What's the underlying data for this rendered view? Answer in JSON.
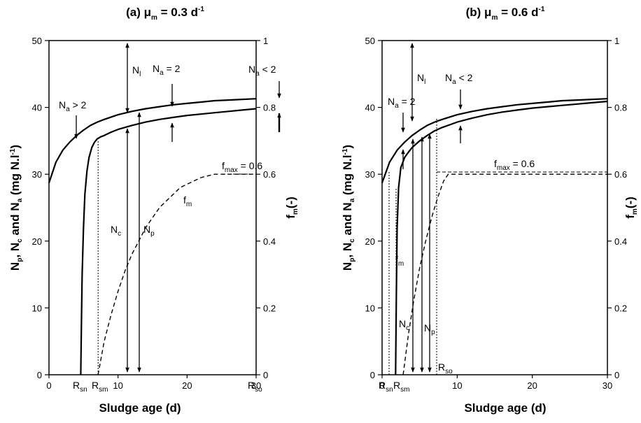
{
  "chart_data": [
    {
      "type": "line",
      "title": {
        "main": "(a) μ",
        "sub": "m",
        "rest": " = 0.3 d",
        "sup": "-1"
      },
      "xlabel": "Sludge age (d)",
      "ylabel": {
        "p1": "N",
        "s1": "p",
        "p2": ", N",
        "s2": "c",
        "p3": " and N",
        "s3": "a",
        "p4": " (mg N.l",
        "sup": "-1",
        "p5": ")"
      },
      "y2label": {
        "p1": "f",
        "s1": "m",
        "p2": "(-)"
      },
      "xlim": [
        0,
        30
      ],
      "ylim": [
        0,
        50
      ],
      "y2lim": [
        0,
        1
      ],
      "xticks": [
        "0",
        "10",
        "20",
        "30"
      ],
      "yticks": [
        "0",
        "10",
        "20",
        "30",
        "40",
        "50"
      ],
      "y2ticks": [
        "0",
        "0.2",
        "0.4",
        "0.6",
        "0.8",
        "1"
      ],
      "series": [
        {
          "key": "Np",
          "style": "solid",
          "x": [
            0,
            1,
            2,
            3,
            4,
            5,
            6,
            7,
            8,
            10,
            12,
            14,
            16,
            18,
            20,
            22,
            24,
            26,
            28,
            30
          ],
          "y": [
            28.7,
            31.8,
            33.6,
            34.8,
            35.8,
            36.6,
            37.3,
            37.8,
            38.2,
            38.9,
            39.4,
            39.8,
            40.1,
            40.4,
            40.6,
            40.8,
            41.0,
            41.1,
            41.2,
            41.3
          ]
        },
        {
          "key": "Nc",
          "style": "solid",
          "x": [
            4.6,
            4.7,
            4.8,
            5.0,
            5.2,
            5.5,
            5.8,
            6.2,
            6.6,
            7.0,
            7.5,
            8.0,
            9,
            10,
            12,
            14,
            16,
            18,
            20,
            22,
            24,
            26,
            28,
            30
          ],
          "y": [
            0,
            8,
            15,
            22,
            27,
            30.5,
            32.5,
            34.0,
            34.8,
            35.3,
            35.6,
            35.8,
            36.3,
            36.7,
            37.3,
            37.8,
            38.2,
            38.5,
            38.8,
            39.0,
            39.2,
            39.4,
            39.6,
            39.8
          ]
        },
        {
          "key": "fm",
          "style": "dashed",
          "axis": "y2",
          "x": [
            7.1,
            8,
            9,
            10,
            11,
            12,
            13,
            14,
            15,
            16,
            17,
            18,
            19,
            20,
            21,
            22,
            23,
            24,
            25,
            30
          ],
          "y": [
            0,
            0.1,
            0.18,
            0.25,
            0.31,
            0.36,
            0.4,
            0.44,
            0.47,
            0.5,
            0.52,
            0.54,
            0.56,
            0.57,
            0.58,
            0.59,
            0.595,
            0.6,
            0.6,
            0.6
          ]
        }
      ],
      "annotations": [
        {
          "base": "N",
          "sub": "l"
        },
        {
          "base": "N",
          "sub": "a",
          "rest": " = 2"
        },
        {
          "base": "N",
          "sub": "a",
          "rest": " < 2"
        },
        {
          "base": "N",
          "sub": "a",
          "rest": " > 2"
        },
        {
          "base": "f",
          "sub": "max",
          "rest": " =  0.6"
        },
        {
          "base": "f",
          "sub": "m"
        },
        {
          "base": "N",
          "sub": "c"
        },
        {
          "base": "N",
          "sub": "p"
        },
        {
          "base": "R",
          "sub": "sn"
        },
        {
          "base": "R",
          "sub": "sm"
        },
        {
          "base": "R",
          "sub": "so"
        }
      ],
      "verticals": {
        "Rsn": 4.6,
        "Rsm": 7.1,
        "Rso": 25
      },
      "arrows": {
        "Nl_x": 8.8,
        "Nc_x": 8.8,
        "Np_x": 10.3,
        "Na_gt2_x": 2.8,
        "Na_eq2_x": 14.5,
        "Na_lt2_x": 28.3
      }
    },
    {
      "type": "line",
      "title": {
        "main": "(b) μ",
        "sub": "m",
        "rest": " = 0.6 d",
        "sup": "-1"
      },
      "xlabel": "Sludge age (d)",
      "ylabel": {
        "p1": "N",
        "s1": "p",
        "p2": ", N",
        "s2": "c",
        "p3": " and N",
        "s3": "a",
        "p4": " (mg N.l",
        "sup": "-1",
        "p5": ")"
      },
      "y2label": {
        "p1": "f",
        "s1": "m",
        "p2": "(-)"
      },
      "xlim": [
        0,
        30
      ],
      "ylim": [
        0,
        50
      ],
      "y2lim": [
        0,
        1
      ],
      "xticks": [
        "0",
        "10",
        "20",
        "30"
      ],
      "yticks": [
        "0",
        "10",
        "20",
        "30",
        "40",
        "50"
      ],
      "y2ticks": [
        "0",
        "0.2",
        "0.4",
        "0.6",
        "0.8",
        "1"
      ],
      "series": [
        {
          "key": "Np",
          "style": "solid",
          "x": [
            0,
            1,
            2,
            3,
            4,
            5,
            6,
            7,
            8,
            10,
            12,
            14,
            16,
            18,
            20,
            22,
            24,
            26,
            28,
            30
          ],
          "y": [
            28.7,
            31.8,
            33.6,
            34.8,
            35.8,
            36.6,
            37.3,
            37.8,
            38.2,
            38.9,
            39.4,
            39.8,
            40.1,
            40.4,
            40.6,
            40.8,
            41.0,
            41.1,
            41.2,
            41.3
          ]
        },
        {
          "key": "Nc",
          "style": "solid",
          "x": [
            1.8,
            1.9,
            2.0,
            2.2,
            2.5,
            3.0,
            3.5,
            4.0,
            5,
            6,
            7,
            8,
            9,
            10,
            12,
            14,
            16,
            18,
            20,
            22,
            24,
            26,
            28,
            30
          ],
          "y": [
            0,
            12,
            22,
            28,
            31,
            32.5,
            33.3,
            34.0,
            35.0,
            35.8,
            36.5,
            37.0,
            37.4,
            37.8,
            38.4,
            38.9,
            39.3,
            39.6,
            39.9,
            40.1,
            40.3,
            40.5,
            40.7,
            40.9
          ]
        },
        {
          "key": "fm",
          "style": "dashed",
          "axis": "y2",
          "x": [
            2.8,
            3.5,
            4.2,
            5.0,
            5.8,
            6.6,
            7.4,
            8.2,
            8.8,
            30
          ],
          "y": [
            0,
            0.12,
            0.22,
            0.32,
            0.4,
            0.47,
            0.53,
            0.58,
            0.6,
            0.6
          ]
        }
      ],
      "annotations": [
        {
          "base": "N",
          "sub": "l"
        },
        {
          "base": "N",
          "sub": "a",
          "rest": " = 2"
        },
        {
          "base": "N",
          "sub": "a",
          "rest": " < 2"
        },
        {
          "base": "f",
          "sub": "max",
          "rest": " = 0.6"
        },
        {
          "base": "f",
          "sub": "m"
        },
        {
          "base": "N",
          "sub": "c"
        },
        {
          "base": "N",
          "sub": "p"
        },
        {
          "base": "R",
          "sub": "sn"
        },
        {
          "base": "R",
          "sub": "sm"
        },
        {
          "base": "R",
          "sub": "so"
        }
      ],
      "verticals": {
        "Rsn": 1.8,
        "Rsm": 2.8,
        "Rso": 8.8
      },
      "arrows": {
        "Nl_x": 4.6,
        "Nc_x": 5.7,
        "Np_x": 6.9,
        "Na_eq2_x": 3.0,
        "Na_lt2_x": 11.4
      }
    }
  ]
}
